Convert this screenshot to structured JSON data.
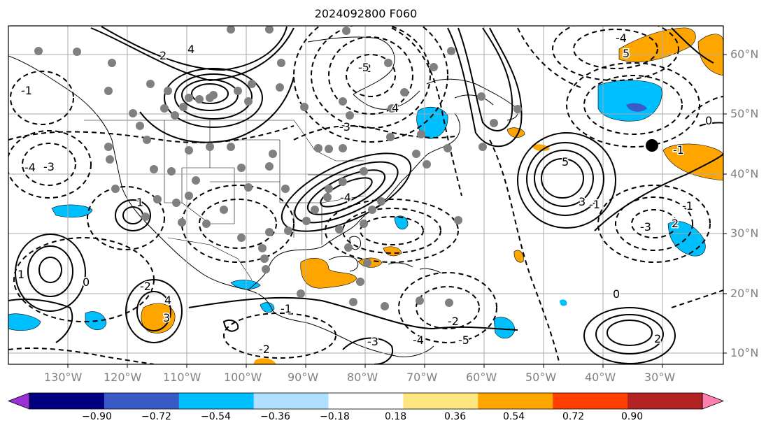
{
  "title": "2024092800 F060",
  "lon_labels": [
    "130°W",
    "120°W",
    "110°W",
    "100°W",
    "90°W",
    "80°W",
    "70°W",
    "60°W",
    "50°W",
    "40°W",
    "30°W"
  ],
  "lat_labels": [
    "60°N",
    "50°N",
    "40°N",
    "30°N",
    "20°N",
    "10°N"
  ],
  "colorbar": {
    "ticks": [
      "−0.90",
      "−0.72",
      "−0.54",
      "−0.36",
      "−0.18",
      "0.18",
      "0.36",
      "0.54",
      "0.72",
      "0.90"
    ],
    "colors": [
      "#9b30d9",
      "#000080",
      "#3a5bc7",
      "#00bfff",
      "#b0e0ff",
      "#ffffff",
      "#ffe680",
      "#ffa500",
      "#ff4000",
      "#b22222",
      "#ff80b0"
    ]
  },
  "contour_labels": [
    "5",
    "3",
    "4",
    "2",
    "5",
    "-4",
    "-3",
    "4",
    "-2",
    "-5",
    "-4",
    "-3",
    "1",
    "-1",
    "0",
    "-2",
    "3",
    "-3",
    "-4",
    "-5",
    "-2",
    "-2",
    "-1",
    "1",
    "2",
    "-3",
    "-1",
    "-1",
    "0",
    "2",
    "4",
    "-4",
    "-1",
    "0"
  ]
}
